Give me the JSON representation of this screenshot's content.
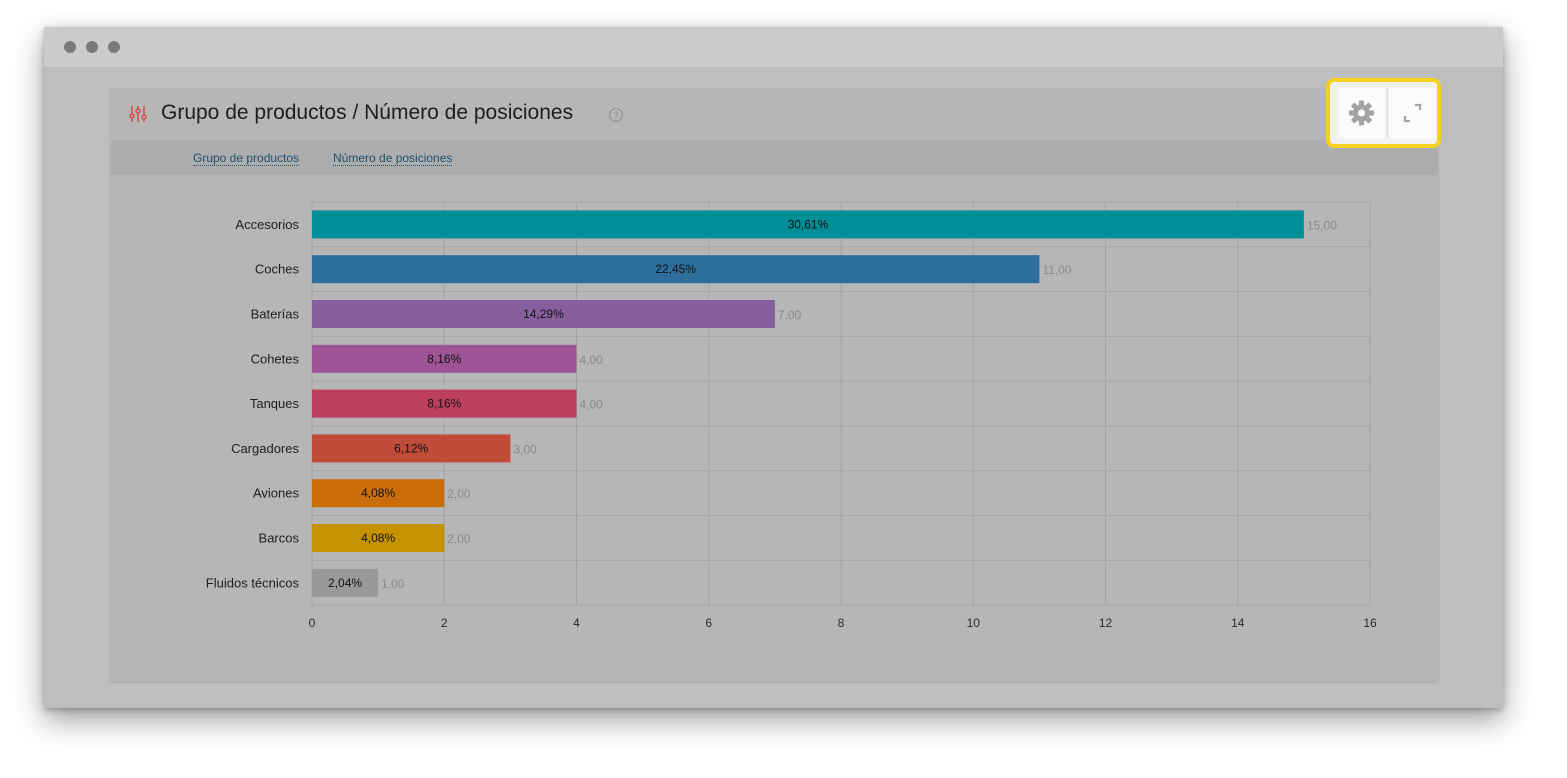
{
  "window": {
    "dots": [
      "close",
      "minimize",
      "maximize"
    ]
  },
  "panel": {
    "title": "Grupo de productos / Número de posiciones",
    "help_glyph": "?",
    "title_icon": "sliders-icon",
    "tabs": [
      {
        "label": "Grupo de productos"
      },
      {
        "label": "Número de posiciones"
      }
    ]
  },
  "toolbar": {
    "settings_icon": "gear-icon",
    "fullscreen_icon": "expand-icon",
    "highlight_color": "#f5d21f"
  },
  "chart_data": {
    "type": "bar",
    "orientation": "horizontal",
    "categories": [
      "Accesorios",
      "Coches",
      "Baterías",
      "Cohetes",
      "Tanques",
      "Cargadores",
      "Aviones",
      "Barcos",
      "Fluidos técnicos"
    ],
    "values": [
      15,
      11,
      7,
      4,
      4,
      3,
      2,
      2,
      1
    ],
    "value_labels": [
      "15,00",
      "11,00",
      "7,00",
      "4,00",
      "4,00",
      "3,00",
      "2,00",
      "2,00",
      "1,00"
    ],
    "percent_labels": [
      "30,61%",
      "22,45%",
      "14,29%",
      "8,16%",
      "8,16%",
      "6,12%",
      "4,08%",
      "4,08%",
      "2,04%"
    ],
    "colors": [
      "#008e97",
      "#2e6e9c",
      "#865f9c",
      "#9c5496",
      "#bd3f5f",
      "#c24c3a",
      "#cc6d0c",
      "#c79200",
      "#999999"
    ],
    "xlim": [
      0,
      16
    ],
    "xticks": [
      "0",
      "2",
      "4",
      "6",
      "8",
      "10",
      "12",
      "14",
      "16"
    ],
    "grid": true,
    "title": "",
    "xlabel": "",
    "ylabel": ""
  }
}
